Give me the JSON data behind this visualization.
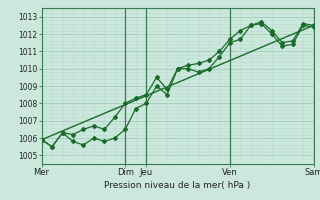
{
  "title": "",
  "xlabel": "Pression niveau de la mer( hPa )",
  "ylabel": "",
  "bg_color": "#cce8dc",
  "grid_major_color": "#a8cfc0",
  "grid_minor_color": "#b8dcd0",
  "line_color": "#1a6b2a",
  "vline_color": "#3a7a50",
  "ylim": [
    1004.5,
    1013.5
  ],
  "yticks": [
    1005,
    1006,
    1007,
    1008,
    1009,
    1010,
    1011,
    1012,
    1013
  ],
  "xlim": [
    0,
    13
  ],
  "xtick_positions": [
    0,
    4,
    5,
    9,
    13
  ],
  "xtick_labels": [
    "Mer",
    "Dim",
    "Jeu",
    "Ven",
    "Sam"
  ],
  "line1_x": [
    0,
    0.5,
    1,
    1.5,
    2,
    2.5,
    3,
    3.5,
    4,
    4.5,
    5,
    5.5,
    6,
    6.5,
    7,
    7.5,
    8,
    8.5,
    9,
    9.5,
    10,
    10.5,
    11,
    11.5,
    12,
    12.5,
    13
  ],
  "line1_y": [
    1005.9,
    1005.5,
    1006.3,
    1005.8,
    1005.6,
    1006.0,
    1005.8,
    1006.0,
    1006.5,
    1007.7,
    1008.0,
    1009.0,
    1008.5,
    1010.0,
    1010.0,
    1009.8,
    1010.0,
    1010.7,
    1011.5,
    1011.7,
    1012.5,
    1012.6,
    1012.0,
    1011.3,
    1011.4,
    1012.5,
    1012.4
  ],
  "line2_x": [
    0,
    0.5,
    1,
    1.5,
    2,
    2.5,
    3,
    3.5,
    4,
    4.5,
    5,
    5.5,
    6,
    6.5,
    7,
    7.5,
    8,
    8.5,
    9,
    9.5,
    10,
    10.5,
    11,
    11.5,
    12,
    12.5,
    13
  ],
  "line2_y": [
    1005.9,
    1005.5,
    1006.3,
    1006.2,
    1006.5,
    1006.7,
    1006.5,
    1007.2,
    1008.0,
    1008.3,
    1008.5,
    1009.5,
    1008.8,
    1010.0,
    1010.2,
    1010.3,
    1010.5,
    1011.0,
    1011.7,
    1012.2,
    1012.5,
    1012.7,
    1012.2,
    1011.5,
    1011.6,
    1012.6,
    1012.5
  ],
  "trend_x": [
    0,
    13
  ],
  "trend_y": [
    1005.9,
    1012.5
  ],
  "vlines": [
    4,
    5,
    9,
    13
  ]
}
